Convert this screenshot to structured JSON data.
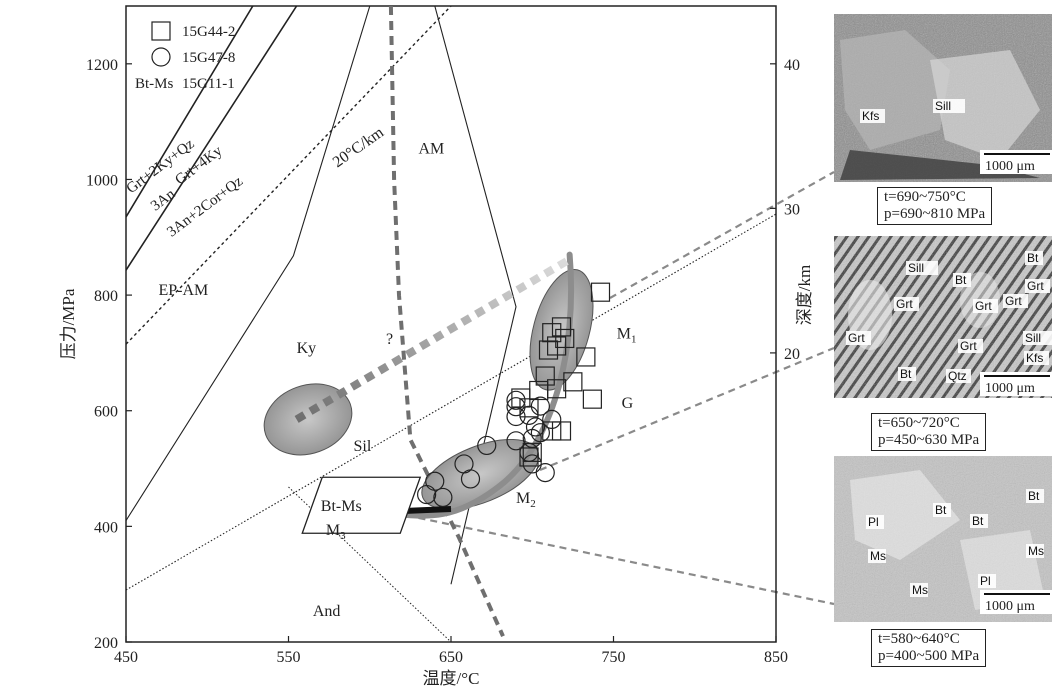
{
  "chart_data": {
    "type": "scatter",
    "xlabel": "温度/°C",
    "ylabel": "压力/MPa",
    "y2label": "深度/km",
    "xlim": [
      450,
      850
    ],
    "ylim": [
      200,
      1300
    ],
    "y2lim": [
      0,
      44
    ],
    "xticks": [
      450,
      550,
      650,
      750,
      850
    ],
    "yticks": [
      200,
      400,
      600,
      800,
      1000,
      1200
    ],
    "y2ticks": [
      20,
      30,
      40
    ],
    "legend": {
      "placement": "top-left",
      "entries": [
        {
          "symbol": "square",
          "label": "15G44-2"
        },
        {
          "symbol": "circle",
          "label": "15G47-8"
        },
        {
          "symbol": "text",
          "symbol_text": "Bt-Ms",
          "label": "15G11-1"
        }
      ]
    },
    "series": [
      {
        "name": "15G44-2",
        "marker": "square",
        "points": [
          [
            742,
            805
          ],
          [
            718,
            745
          ],
          [
            712,
            735
          ],
          [
            720,
            725
          ],
          [
            715,
            712
          ],
          [
            710,
            705
          ],
          [
            733,
            693
          ],
          [
            708,
            660
          ],
          [
            725,
            650
          ],
          [
            715,
            638
          ],
          [
            704,
            635
          ],
          [
            693,
            622
          ],
          [
            737,
            620
          ],
          [
            698,
            605
          ],
          [
            712,
            565
          ],
          [
            718,
            565
          ],
          [
            700,
            528
          ],
          [
            698,
            520
          ]
        ]
      },
      {
        "name": "15G47-8",
        "marker": "circle",
        "points": [
          [
            690,
            618
          ],
          [
            690,
            607
          ],
          [
            705,
            608
          ],
          [
            698,
            592
          ],
          [
            690,
            590
          ],
          [
            712,
            585
          ],
          [
            702,
            572
          ],
          [
            705,
            562
          ],
          [
            700,
            552
          ],
          [
            690,
            548
          ],
          [
            672,
            540
          ],
          [
            698,
            528
          ],
          [
            700,
            508
          ],
          [
            708,
            493
          ],
          [
            658,
            508
          ],
          [
            662,
            482
          ],
          [
            640,
            478
          ],
          [
            635,
            455
          ],
          [
            645,
            450
          ]
        ]
      }
    ],
    "lines": [
      {
        "label": "Grt+2Ky+Qz / 3An",
        "points": [
          [
            450,
            935
          ],
          [
            528,
            1300
          ]
        ]
      },
      {
        "label": "Grt+4Ky / 3An+2Cor+Qz",
        "points": [
          [
            450,
            843
          ],
          [
            555,
            1300
          ]
        ]
      },
      {
        "label": "20°C/km",
        "points": [
          [
            450,
            715
          ],
          [
            650,
            1300
          ]
        ]
      },
      {
        "label": "Ky-Sil",
        "points": [
          [
            450,
            290
          ],
          [
            850,
            940
          ]
        ]
      },
      {
        "label": "Ky-And",
        "points": [
          [
            450,
            410
          ],
          [
            553,
            868
          ],
          [
            600,
            1300
          ]
        ]
      },
      {
        "label": "AM-G",
        "points": [
          [
            640,
            1300
          ],
          [
            690,
            780
          ],
          [
            650,
            300
          ]
        ]
      },
      {
        "label": "And-Sil",
        "points": [
          [
            550,
            468
          ],
          [
            650,
            200
          ]
        ]
      }
    ],
    "dashed_curve": {
      "points": [
        [
          613,
          1300
        ],
        [
          615,
          1000
        ],
        [
          618,
          800
        ],
        [
          625,
          550
        ],
        [
          655,
          380
        ],
        [
          682,
          210
        ]
      ]
    },
    "gradient_path": {
      "label": "?",
      "points": [
        [
          555,
          585
        ],
        [
          722,
          860
        ]
      ]
    },
    "fields": [
      {
        "label": "AM",
        "x": 630,
        "y": 1045
      },
      {
        "label": "EP-AM",
        "x": 470,
        "y": 800
      },
      {
        "label": "Ky",
        "x": 555,
        "y": 700
      },
      {
        "label": "Sil",
        "x": 590,
        "y": 530
      },
      {
        "label": "G",
        "x": 755,
        "y": 605
      },
      {
        "label": "And",
        "x": 565,
        "y": 245
      },
      {
        "label": "20°C/km",
        "x": 580,
        "y": 1020
      }
    ],
    "stages": [
      {
        "label": "M",
        "sub": "1"
      },
      {
        "label": "M",
        "sub": "2"
      },
      {
        "label": "M",
        "sub": "3"
      }
    ],
    "reaction_labels": [
      {
        "line1": "Grt+2Ky+Qz",
        "line2": "3An"
      },
      {
        "line1": "Grt+4Ky",
        "line2": "3An+2Cor+Qz"
      }
    ],
    "bt_ms_box_label": "Bt-Ms",
    "question_mark": "?"
  },
  "photos": [
    {
      "minerals": [
        "Kfs",
        "Sill"
      ],
      "scale": "1000 μm",
      "caption_t": "t=690~750°C",
      "caption_p": "p=690~810 MPa"
    },
    {
      "minerals": [
        "Sill",
        "Bt",
        "Grt",
        "Grt",
        "Bt",
        "Grt",
        "Grt",
        "Sill",
        "Grt",
        "Bt",
        "Qtz",
        "Kfs",
        "Grt"
      ],
      "scale": "1000 μm",
      "caption_t": "t=650~720°C",
      "caption_p": "p=450~630 MPa"
    },
    {
      "minerals": [
        "Bt",
        "Bt",
        "Bt",
        "Pl",
        "Ms",
        "Ms",
        "Ms",
        "Pl"
      ],
      "scale": "1000 μm",
      "caption_t": "t=580~640°C",
      "caption_p": "p=400~500 MPa"
    }
  ]
}
